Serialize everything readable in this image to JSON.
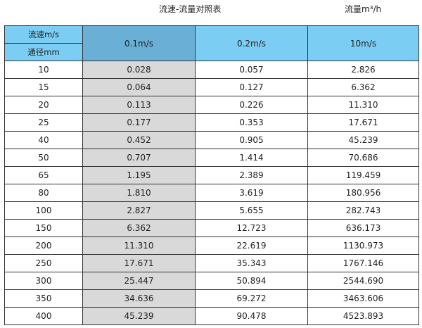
{
  "title": "流速-流量对照表",
  "unit": "流量m³/h",
  "header": {
    "velocity_label": "流速m/s",
    "diameter_label": "通径mm",
    "columns": [
      "0.1m/s",
      "0.2m/s",
      "10m/s"
    ]
  },
  "colors": {
    "header": "#7ccdf3",
    "highlight_header": "#6ab0d6",
    "highlight_column": "#d9d9d9"
  },
  "rows": [
    [
      "10",
      "0.028",
      "0.057",
      "2.826"
    ],
    [
      "15",
      "0.064",
      "0.127",
      "6.362"
    ],
    [
      "20",
      "0.113",
      "0.226",
      "11.310"
    ],
    [
      "25",
      "0.177",
      "0.353",
      "17.671"
    ],
    [
      "40",
      "0.452",
      "0.905",
      "45.239"
    ],
    [
      "50",
      "0.707",
      "1.414",
      "70.686"
    ],
    [
      "65",
      "1.195",
      "2.389",
      "119.459"
    ],
    [
      "80",
      "1.810",
      "3.619",
      "180.956"
    ],
    [
      "100",
      "2.827",
      "5.655",
      "282.743"
    ],
    [
      "150",
      "6.362",
      "12.723",
      "636.173"
    ],
    [
      "200",
      "11.310",
      "22.619",
      "1130.973"
    ],
    [
      "250",
      "17.671",
      "35.343",
      "1767.146"
    ],
    [
      "300",
      "25.447",
      "50.894",
      "2544.690"
    ],
    [
      "350",
      "34.636",
      "69.272",
      "3463.606"
    ],
    [
      "400",
      "45.239",
      "90.478",
      "4523.893"
    ]
  ]
}
